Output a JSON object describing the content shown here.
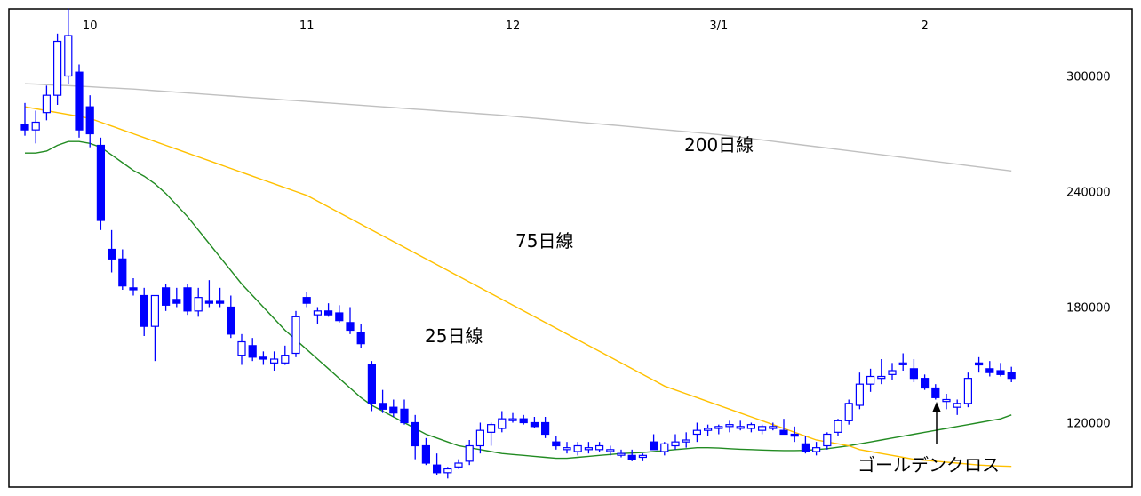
{
  "chart_data": {
    "type": "candlestick",
    "x_ticks": [
      {
        "label": "10",
        "index": 6
      },
      {
        "label": "11",
        "index": 26
      },
      {
        "label": "12",
        "index": 45
      },
      {
        "label": "3/1",
        "index": 64
      },
      {
        "label": "2",
        "index": 83
      }
    ],
    "y_ticks": [
      120000,
      180000,
      240000,
      300000
    ],
    "ylim": [
      90000,
      330000
    ],
    "n": 92,
    "colors": {
      "up_fill": "#ffffff",
      "down_fill": "#0000ff",
      "candle_stroke": "#0000ff",
      "ma25": "#228b22",
      "ma75": "#ffc000",
      "ma200": "#c0c0c0"
    },
    "candles": [
      [
        275000,
        286000,
        269000,
        272000
      ],
      [
        272000,
        282000,
        265000,
        276000
      ],
      [
        281000,
        295000,
        277000,
        290000
      ],
      [
        290000,
        322000,
        285000,
        318000
      ],
      [
        300000,
        335000,
        296000,
        321000
      ],
      [
        302000,
        306000,
        268000,
        272000
      ],
      [
        284000,
        290000,
        263000,
        270000
      ],
      [
        264000,
        268000,
        220000,
        225000
      ],
      [
        210000,
        220000,
        198000,
        205000
      ],
      [
        205000,
        210000,
        189000,
        191000
      ],
      [
        190000,
        195000,
        186000,
        189000
      ],
      [
        186000,
        190000,
        165000,
        170000
      ],
      [
        170000,
        186000,
        152000,
        186000
      ],
      [
        190000,
        192000,
        178000,
        181000
      ],
      [
        184000,
        190000,
        180000,
        182000
      ],
      [
        190000,
        192000,
        176000,
        178000
      ],
      [
        178000,
        190000,
        175000,
        185000
      ],
      [
        183000,
        194000,
        180000,
        182000
      ],
      [
        183000,
        190000,
        180000,
        182000
      ],
      [
        180000,
        186000,
        164000,
        166000
      ],
      [
        155000,
        166000,
        150000,
        162000
      ],
      [
        160000,
        164000,
        152000,
        154000
      ],
      [
        154000,
        157000,
        150000,
        153000
      ],
      [
        151000,
        157000,
        147000,
        153000
      ],
      [
        151000,
        160000,
        150000,
        155000
      ],
      [
        156000,
        178000,
        154000,
        175000
      ],
      [
        185000,
        188000,
        180000,
        182000
      ],
      [
        176000,
        180000,
        171000,
        178000
      ],
      [
        178000,
        182000,
        175000,
        176000
      ],
      [
        177000,
        181000,
        172000,
        173000
      ],
      [
        172000,
        180000,
        166000,
        168000
      ],
      [
        167000,
        171000,
        159000,
        161000
      ],
      [
        150000,
        152000,
        126000,
        130000
      ],
      [
        130000,
        137000,
        125000,
        127000
      ],
      [
        128000,
        132000,
        123000,
        125000
      ],
      [
        127000,
        132000,
        119000,
        120000
      ],
      [
        120000,
        124000,
        101000,
        108000
      ],
      [
        108000,
        112000,
        98000,
        99000
      ],
      [
        98000,
        104000,
        93000,
        94000
      ],
      [
        94000,
        97000,
        91000,
        96000
      ],
      [
        97000,
        101000,
        96000,
        99000
      ],
      [
        100000,
        111000,
        98000,
        108000
      ],
      [
        108000,
        120000,
        104000,
        116000
      ],
      [
        115000,
        120000,
        108000,
        119000
      ],
      [
        117000,
        126000,
        115000,
        122000
      ],
      [
        122000,
        125000,
        120000,
        122000
      ],
      [
        122000,
        124000,
        119000,
        120000
      ],
      [
        120000,
        123000,
        117000,
        118000
      ],
      [
        120000,
        123000,
        112000,
        114000
      ],
      [
        110000,
        113000,
        106000,
        108000
      ],
      [
        106000,
        110000,
        104000,
        107000
      ],
      [
        105000,
        110000,
        103000,
        108000
      ],
      [
        106000,
        110000,
        104000,
        107000
      ],
      [
        106000,
        110000,
        105000,
        108000
      ],
      [
        105000,
        108000,
        103000,
        106000
      ],
      [
        104000,
        106000,
        102000,
        104000
      ],
      [
        103000,
        106000,
        100000,
        101000
      ],
      [
        102000,
        104000,
        100000,
        103000
      ],
      [
        110000,
        114000,
        106000,
        106000
      ],
      [
        105000,
        110000,
        103000,
        109000
      ],
      [
        108000,
        114000,
        106000,
        110000
      ],
      [
        110000,
        115000,
        107000,
        111000
      ],
      [
        114000,
        120000,
        110000,
        116000
      ],
      [
        116000,
        119000,
        113000,
        117000
      ],
      [
        117000,
        119000,
        114000,
        118000
      ],
      [
        118000,
        121000,
        115000,
        119000
      ],
      [
        118000,
        121000,
        116000,
        118000
      ],
      [
        117000,
        120000,
        115000,
        119000
      ],
      [
        116000,
        119000,
        114000,
        118000
      ],
      [
        117000,
        120000,
        116000,
        118000
      ],
      [
        116000,
        122000,
        114000,
        114000
      ],
      [
        114000,
        118000,
        110000,
        113000
      ],
      [
        109000,
        113000,
        104000,
        105000
      ],
      [
        105000,
        110000,
        103000,
        107000
      ],
      [
        108000,
        115000,
        106000,
        114000
      ],
      [
        115000,
        122000,
        113000,
        121000
      ],
      [
        121000,
        132000,
        119000,
        130000
      ],
      [
        129000,
        146000,
        127000,
        140000
      ],
      [
        140000,
        148000,
        136000,
        144000
      ],
      [
        143000,
        153000,
        140000,
        144000
      ],
      [
        145000,
        151000,
        142000,
        147000
      ],
      [
        151000,
        156000,
        147000,
        151000
      ],
      [
        148000,
        153000,
        141000,
        143000
      ],
      [
        143000,
        145000,
        137000,
        138000
      ],
      [
        138000,
        140000,
        132000,
        133000
      ],
      [
        131000,
        135000,
        127000,
        132000
      ],
      [
        128000,
        132000,
        124000,
        130000
      ],
      [
        130000,
        146000,
        128000,
        143000
      ],
      [
        151000,
        154000,
        146000,
        150000
      ],
      [
        148000,
        152000,
        144000,
        146000
      ],
      [
        147000,
        151000,
        144000,
        145000
      ],
      [
        146000,
        149000,
        141000,
        143000
      ]
    ],
    "series": [
      {
        "key": "ma25",
        "values": [
          260000,
          260000,
          261000,
          264000,
          266000,
          266000,
          265000,
          263000,
          259000,
          255000,
          251000,
          248000,
          244000,
          239000,
          233000,
          227000,
          220000,
          213000,
          206000,
          199000,
          192000,
          186000,
          180000,
          174000,
          168000,
          163000,
          158000,
          153000,
          148000,
          143000,
          138000,
          133000,
          129000,
          126000,
          123000,
          120000,
          117000,
          114000,
          112000,
          110000,
          108000,
          107000,
          106000,
          105000,
          104000,
          103500,
          103000,
          102500,
          102000,
          101500,
          101500,
          102000,
          102500,
          103000,
          103500,
          104000,
          104200,
          104500,
          105000,
          105500,
          106000,
          106500,
          107000,
          107000,
          106800,
          106500,
          106200,
          106000,
          105800,
          105600,
          105500,
          105500,
          105600,
          106000,
          106500,
          107200,
          108000,
          109000,
          110000,
          111000,
          112000,
          113000,
          114000,
          115000,
          116000,
          117000,
          118000,
          119000,
          120000,
          121000,
          122000,
          124000
        ]
      },
      {
        "key": "ma75",
        "values": [
          284000,
          283000,
          282000,
          281000,
          280000,
          279000,
          278000,
          276000,
          274000,
          272000,
          270000,
          268000,
          266000,
          264000,
          262000,
          260000,
          258000,
          256000,
          254000,
          252000,
          250000,
          248000,
          246000,
          244000,
          242000,
          240000,
          238000,
          235000,
          232000,
          229000,
          226000,
          223000,
          220000,
          217000,
          214000,
          211000,
          208000,
          205000,
          202000,
          199000,
          196000,
          193000,
          190000,
          187000,
          184000,
          181000,
          178000,
          175000,
          172000,
          169000,
          166000,
          163000,
          160000,
          157000,
          154000,
          151000,
          148000,
          145000,
          142000,
          139000,
          137000,
          135000,
          133000,
          131000,
          129000,
          127000,
          125000,
          123000,
          121000,
          119000,
          117000,
          115000,
          113000,
          111000,
          110000,
          109000,
          108000,
          106000,
          105000,
          104000,
          103000,
          102000,
          101000,
          100500,
          100000,
          99500,
          99000,
          98500,
          98000,
          97700,
          97500,
          97300
        ]
      },
      {
        "key": "ma200",
        "values": [
          296000,
          295800,
          295500,
          295200,
          295000,
          294700,
          294400,
          294100,
          293800,
          293500,
          293200,
          292800,
          292400,
          292000,
          291600,
          291200,
          290800,
          290400,
          290000,
          289600,
          289200,
          288800,
          288400,
          288000,
          287600,
          287200,
          286800,
          286400,
          286000,
          285600,
          285200,
          284800,
          284400,
          284000,
          283600,
          283200,
          282800,
          282400,
          282000,
          281600,
          281200,
          280800,
          280400,
          280000,
          279600,
          279100,
          278600,
          278100,
          277600,
          277100,
          276600,
          276100,
          275600,
          275100,
          274600,
          274100,
          273600,
          273100,
          272600,
          272100,
          271600,
          271100,
          270600,
          270100,
          269600,
          268900,
          268200,
          267500,
          266800,
          266100,
          265400,
          264700,
          264000,
          263300,
          262600,
          261900,
          261200,
          260500,
          259800,
          259100,
          258400,
          257700,
          257000,
          256300,
          255600,
          254900,
          254200,
          253500,
          252800,
          252100,
          251400,
          250700
        ]
      }
    ],
    "annotations": [
      {
        "key": "ma200_label",
        "text": "200日線"
      },
      {
        "key": "ma75_label",
        "text": "75日線"
      },
      {
        "key": "ma25_label",
        "text": "25日線"
      },
      {
        "key": "golden_cross_label",
        "text": "ゴールデンクロス"
      }
    ]
  }
}
